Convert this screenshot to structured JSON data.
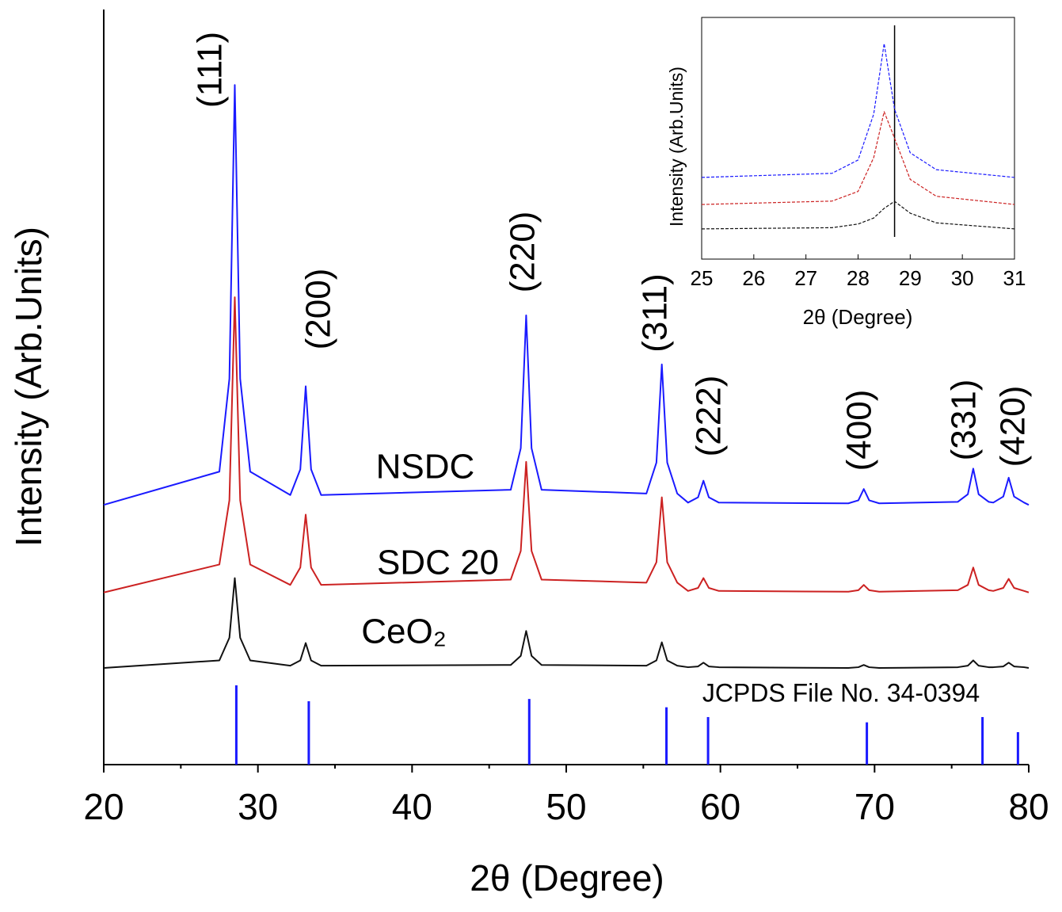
{
  "chart_data": [
    {
      "type": "line",
      "xlabel": "2θ (Degree)",
      "ylabel": "Intensity (Arb.Units)",
      "xlim": [
        20,
        80
      ],
      "ylim": [
        0,
        100
      ],
      "xticks": [
        20,
        30,
        40,
        50,
        60,
        70,
        80
      ],
      "xminorticks": [
        25,
        35,
        45,
        55,
        65,
        75
      ],
      "x": [
        20,
        27.5,
        28.15,
        28.5,
        28.85,
        29.5,
        32.1,
        32.75,
        33.1,
        33.45,
        34.1,
        46.4,
        47.05,
        47.4,
        47.75,
        48.4,
        55.2,
        55.85,
        56.2,
        56.55,
        57.2,
        57.9,
        58.55,
        58.9,
        59.25,
        59.9,
        68.3,
        68.95,
        69.3,
        69.65,
        70.3,
        75.4,
        76.05,
        76.4,
        76.75,
        77.4,
        77.7,
        78.35,
        78.7,
        79.05,
        79.7,
        80
      ],
      "series": [
        {
          "name": "NSDC",
          "color": "#1a1aff",
          "values": [
            34.4,
            38.8,
            51.1,
            90.0,
            51.1,
            38.8,
            35.7,
            39.1,
            50.1,
            39.1,
            35.7,
            36.4,
            41.9,
            59.5,
            41.9,
            36.4,
            35.9,
            40.0,
            53.0,
            40.0,
            35.9,
            34.7,
            35.4,
            37.6,
            35.4,
            34.7,
            34.6,
            35.0,
            36.5,
            35.0,
            34.6,
            34.8,
            35.8,
            39.2,
            35.8,
            34.8,
            34.7,
            35.5,
            38.0,
            35.5,
            34.7,
            34.4
          ]
        },
        {
          "name": "SDC 20",
          "color": "#cc2222",
          "values": [
            22.8,
            26.5,
            35.0,
            61.9,
            35.0,
            26.5,
            23.8,
            26.1,
            33.1,
            26.1,
            23.8,
            24.5,
            28.3,
            40.1,
            28.3,
            24.5,
            24.1,
            26.8,
            35.4,
            26.8,
            24.1,
            23.0,
            23.4,
            24.7,
            23.4,
            23.0,
            22.9,
            23.1,
            23.8,
            23.1,
            22.9,
            23.1,
            23.8,
            26.1,
            23.8,
            23.1,
            23.0,
            23.4,
            24.6,
            23.4,
            23.0,
            22.8
          ]
        },
        {
          "name": "CeO₂",
          "color": "#111111",
          "values": [
            12.8,
            13.8,
            16.8,
            24.7,
            16.8,
            13.8,
            13.1,
            13.8,
            16.1,
            13.8,
            13.1,
            13.2,
            14.4,
            17.7,
            14.4,
            13.2,
            13.1,
            13.8,
            16.2,
            13.8,
            13.1,
            12.9,
            13.0,
            13.5,
            13.0,
            12.9,
            12.8,
            12.9,
            13.2,
            12.9,
            12.8,
            12.9,
            13.1,
            13.8,
            13.1,
            12.9,
            12.9,
            13.0,
            13.5,
            13.0,
            12.9,
            12.8
          ]
        },
        {
          "name": "JCPDS File No. 34-0394",
          "color": "#1a1aff",
          "type": "stick",
          "x": [
            28.6,
            33.3,
            47.6,
            56.5,
            59.2,
            69.5,
            77.0,
            79.3
          ],
          "values": [
            10.5,
            8.4,
            8.7,
            7.6,
            6.3,
            5.6,
            6.3,
            4.3
          ]
        }
      ],
      "annotations": [
        "(111)",
        "(200)",
        "(220)",
        "(311)",
        "(222)",
        "(400)",
        "(331)",
        "(420)"
      ]
    },
    {
      "type": "line",
      "xlabel": "2θ (Degree)",
      "ylabel": "Intensity (Arb.Units)",
      "xlim": [
        25,
        31
      ],
      "ylim": [
        0,
        100
      ],
      "xticks": [
        25,
        26,
        27,
        28,
        29,
        30,
        31
      ],
      "vline": 28.7,
      "x": [
        25,
        27.5,
        28.0,
        28.3,
        28.5,
        28.7,
        29.0,
        29.5,
        31
      ],
      "series": [
        {
          "color": "#1a1aff",
          "values": [
            33.8,
            35.5,
            41,
            60,
            89.2,
            62,
            44,
            37,
            33.8
          ]
        },
        {
          "color": "#cc2222",
          "values": [
            22.6,
            24,
            28,
            42,
            61.0,
            50,
            33,
            26,
            22.6
          ]
        },
        {
          "color": "#111111",
          "values": [
            12.5,
            13,
            14.5,
            17,
            21,
            23.9,
            19,
            15,
            12.5
          ]
        }
      ]
    }
  ]
}
